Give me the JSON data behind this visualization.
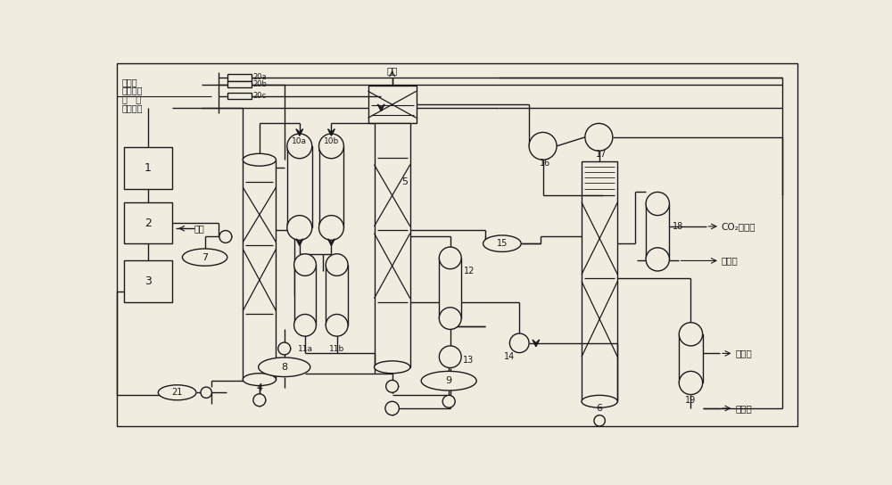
{
  "bg_color": "#f0ece0",
  "line_color": "#1a1a1a",
  "labels": {
    "water_steam": "水蒸汽",
    "from_plant1": "来自电厂",
    "flue_gas": "烟   气",
    "from_plant2": "来自电厂",
    "makeup_liquid": "补液",
    "exhaust": "排空",
    "co2_product": "CO₂产品气",
    "condensate": "冷凝水",
    "liquid_water": "液态水",
    "to_makeup": "去补液"
  }
}
